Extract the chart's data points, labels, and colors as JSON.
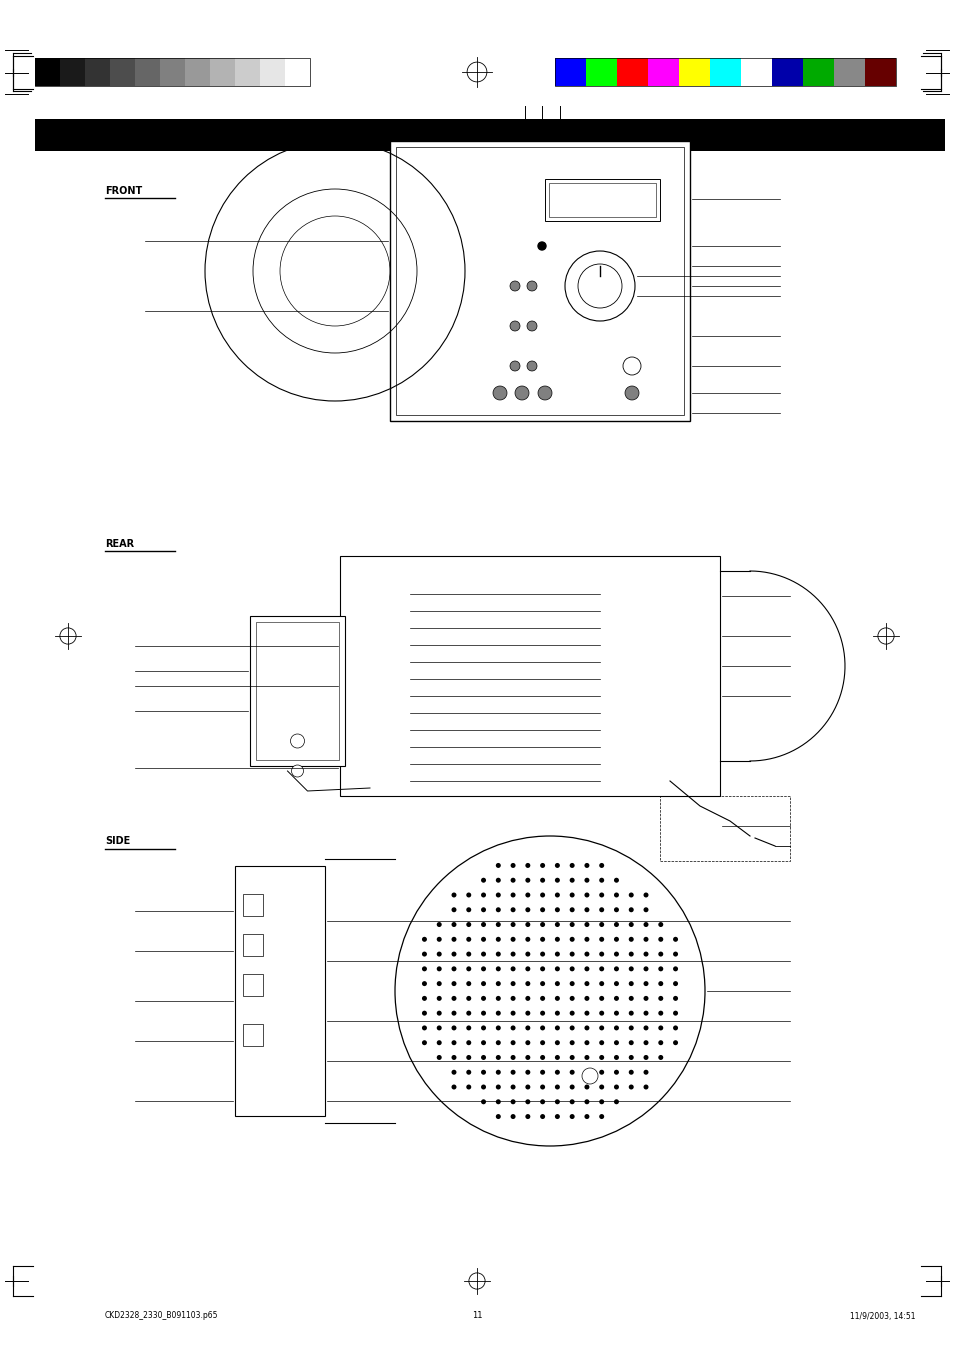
{
  "page_width": 9.54,
  "page_height": 13.51,
  "background_color": "#ffffff",
  "gray_colors": [
    "#000000",
    "#1a1a1a",
    "#333333",
    "#4d4d4d",
    "#666666",
    "#808080",
    "#999999",
    "#b3b3b3",
    "#cccccc",
    "#e6e6e6",
    "#ffffff"
  ],
  "color_bars": [
    "#0000ff",
    "#00ff00",
    "#ff0000",
    "#ff00ff",
    "#ffff00",
    "#00ffff",
    "#ffffff",
    "#0000aa",
    "#00aa00",
    "#888888",
    "#660000"
  ],
  "footer_text_left": "CKD2328_2330_B091103.p65",
  "footer_page_num": "11",
  "footer_text_right": "11/9/2003, 14:51",
  "diagram1_label": "FRONT",
  "diagram2_label": "REAR",
  "diagram3_label": "SIDE"
}
